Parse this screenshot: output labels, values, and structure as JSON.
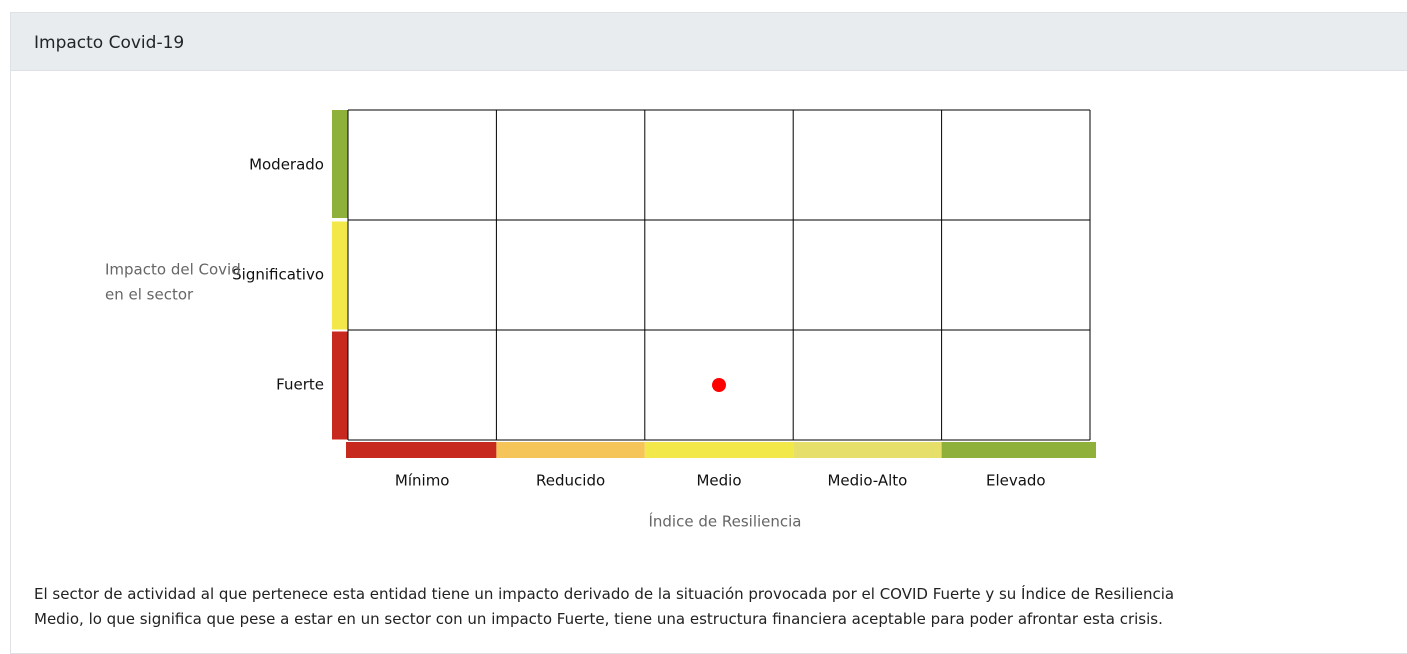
{
  "header": {
    "title": "Impacto Covid-19"
  },
  "matrix": {
    "y_axis_label": [
      "Impacto del Covid",
      "en el sector"
    ],
    "rows": [
      {
        "label": "Moderado",
        "color": "#8fb03a"
      },
      {
        "label": "Significativo",
        "color": "#f2e84a"
      },
      {
        "label": "Fuerte",
        "color": "#c8291f"
      }
    ],
    "columns": [
      {
        "label": "Mínimo",
        "color": "#c8291f"
      },
      {
        "label": "Reducido",
        "color": "#f5c55a"
      },
      {
        "label": "Medio",
        "color": "#f2e84a"
      },
      {
        "label": "Medio-Alto",
        "color": "#e6e06a"
      },
      {
        "label": "Elevado",
        "color": "#8fb03a"
      }
    ],
    "x_axis_label": "Índice de Resiliencia",
    "marker": {
      "row": 2,
      "column": 2,
      "color": "#ff0000"
    }
  },
  "description": [
    "El sector de actividad al que pertenece esta entidad tiene un impacto derivado de la situación provocada por el COVID Fuerte y su Índice de Resiliencia",
    "Medio, lo que significa que pese a estar en un sector con un impacto Fuerte, tiene una estructura financiera aceptable para poder afrontar esta crisis."
  ]
}
